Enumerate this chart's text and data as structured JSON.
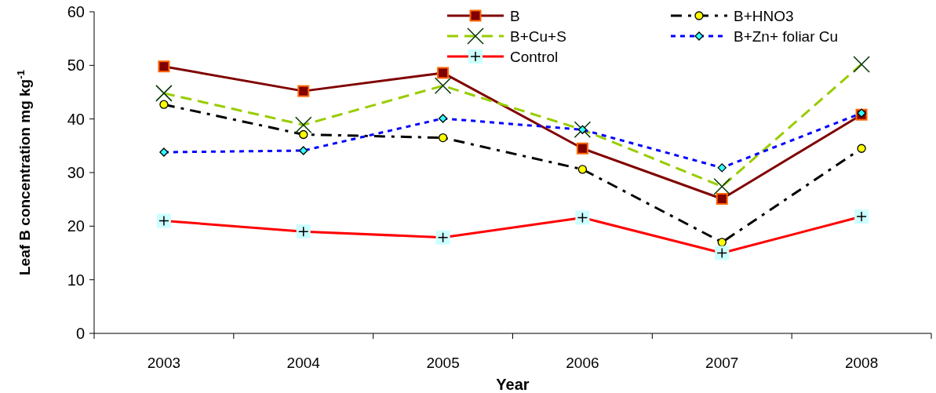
{
  "chart_data": {
    "type": "line",
    "xlabel": "Year",
    "ylabel": "Leaf B concentration  mg kg$^{-1}$",
    "categories": [
      "2003",
      "2004",
      "2005",
      "2006",
      "2007",
      "2008"
    ],
    "series": [
      {
        "name": "B",
        "color": "#800000",
        "marker": "square",
        "line_style": "solid",
        "values": [
          49.8,
          45.2,
          48.6,
          34.5,
          25.1,
          40.8
        ]
      },
      {
        "name": "B+HNO3",
        "color": "#000000",
        "marker": "circle",
        "line_style": "dashdot",
        "values": [
          42.7,
          37.1,
          36.5,
          30.6,
          17.0,
          34.5
        ]
      },
      {
        "name": "B+Cu+S",
        "color": "#99cc00",
        "marker": "cross",
        "line_style": "dashed",
        "values": [
          44.8,
          38.9,
          46.2,
          38.0,
          27.4,
          50.2
        ]
      },
      {
        "name": "B+Zn+ foliar Cu",
        "color": "#0000ff",
        "marker": "diamond",
        "line_style": "dotted",
        "values": [
          33.8,
          34.1,
          40.1,
          38.0,
          30.9,
          41.1
        ]
      },
      {
        "name": "Control",
        "color": "#ff0000",
        "marker": "square",
        "line_style": "solid",
        "values": [
          21.0,
          19.0,
          17.9,
          21.6,
          15.0,
          21.8
        ]
      }
    ],
    "ylim": [
      0,
      60
    ],
    "yticks": [
      0,
      10,
      20,
      30,
      40,
      50,
      60
    ],
    "grid": false,
    "legend": "top right"
  }
}
